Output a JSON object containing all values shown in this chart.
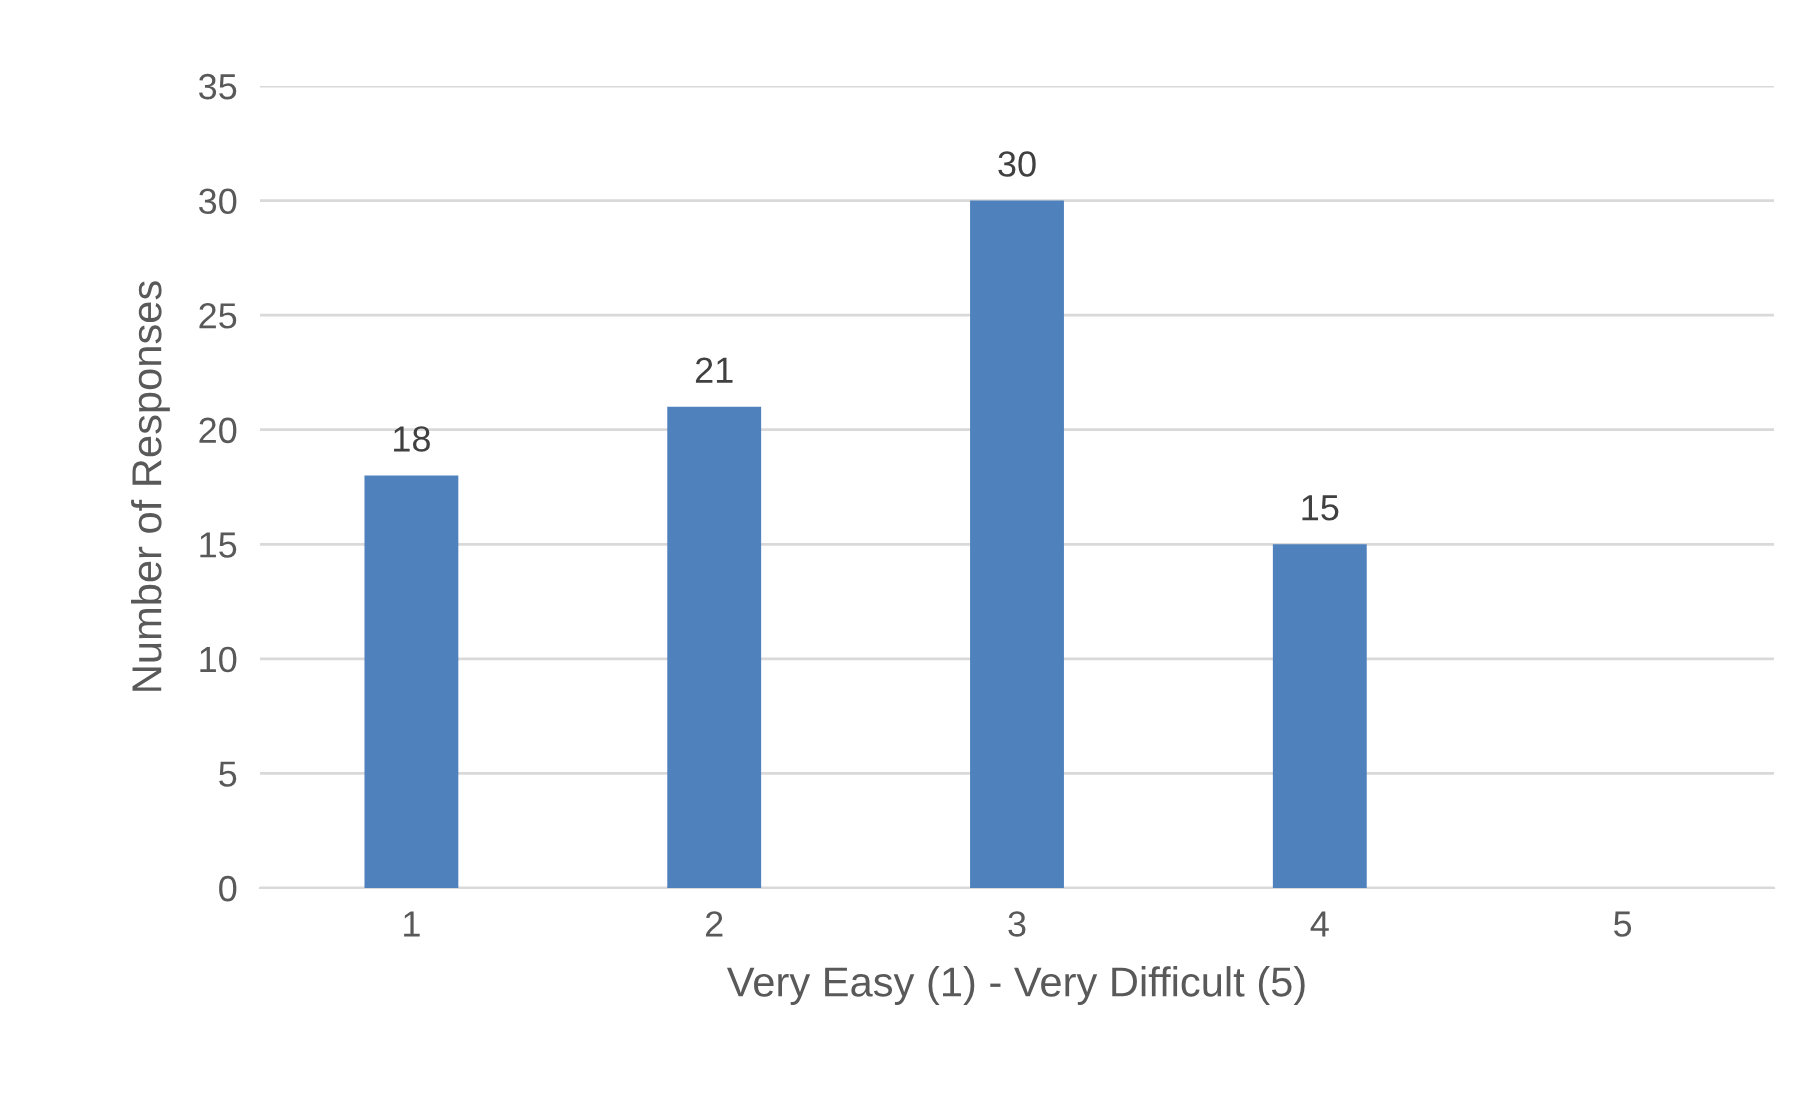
{
  "chart_data": {
    "type": "bar",
    "xlabel": "Very Easy (1) - Very Difficult (5)",
    "ylabel": "Number of Responses",
    "categories": [
      "1",
      "2",
      "3",
      "4",
      "5"
    ],
    "values": [
      18,
      21,
      30,
      15,
      0
    ],
    "value_labels": [
      "18",
      "21",
      "30",
      "15",
      null
    ],
    "color": "#4f81bd",
    "ylim": [
      0,
      35
    ],
    "yticks": [
      0,
      5,
      10,
      15,
      20,
      25,
      30,
      35
    ],
    "grid": "y"
  }
}
